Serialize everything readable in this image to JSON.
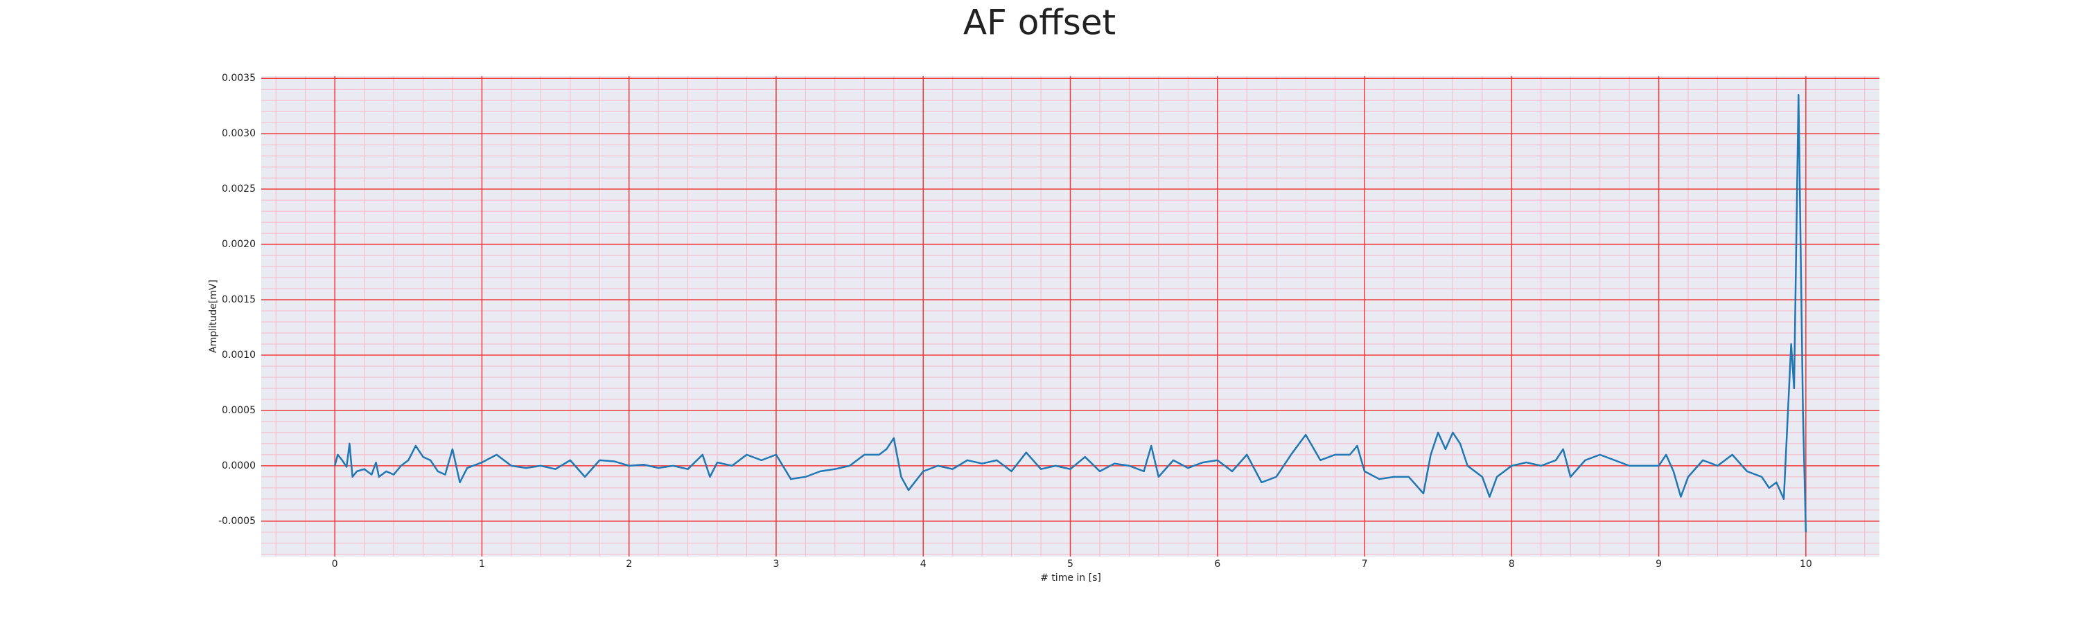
{
  "chart_data": {
    "type": "line",
    "title": "AF offset",
    "x_label": "# time in [s]",
    "y_label": "Amplitude[mV]",
    "color": "#1f77b4",
    "background": "#eaeaf2",
    "grid": true,
    "grid_color": "#f03a3a",
    "minor_grid": true,
    "minor_grid_color": "#f7b8c8",
    "minor_divisions": 5,
    "xlim": [
      -0.5,
      10.5
    ],
    "xticks": [
      0,
      1,
      2,
      3,
      4,
      5,
      6,
      7,
      8,
      9,
      10
    ],
    "ylim": [
      -0.00082,
      0.00352
    ],
    "yticks": [
      {
        "value": -0.0005,
        "label": "-0.0005"
      },
      {
        "value": 0,
        "label": "0.0000"
      },
      0.0005,
      {
        "value": 0.001,
        "label": "0.0010"
      },
      0.0015,
      {
        "value": 0.002,
        "label": "0.0020"
      },
      0.0025,
      {
        "value": 0.003,
        "label": "0.0030"
      },
      0.0035
    ],
    "x": [
      0,
      0.02,
      0.05,
      0.08,
      0.1,
      0.12,
      0.15,
      0.2,
      0.25,
      0.28,
      0.3,
      0.35,
      0.4,
      0.45,
      0.5,
      0.55,
      0.6,
      0.65,
      0.7,
      0.75,
      0.8,
      0.85,
      0.9,
      1.0,
      1.1,
      1.2,
      1.3,
      1.4,
      1.5,
      1.6,
      1.7,
      1.8,
      1.9,
      2.0,
      2.1,
      2.2,
      2.3,
      2.4,
      2.5,
      2.55,
      2.6,
      2.7,
      2.8,
      2.9,
      3.0,
      3.1,
      3.2,
      3.3,
      3.4,
      3.5,
      3.6,
      3.7,
      3.75,
      3.8,
      3.85,
      3.9,
      4.0,
      4.1,
      4.2,
      4.3,
      4.4,
      4.5,
      4.6,
      4.7,
      4.8,
      4.9,
      5.0,
      5.1,
      5.2,
      5.3,
      5.4,
      5.5,
      5.55,
      5.6,
      5.7,
      5.8,
      5.9,
      6.0,
      6.1,
      6.2,
      6.3,
      6.4,
      6.5,
      6.6,
      6.7,
      6.8,
      6.9,
      6.95,
      7.0,
      7.1,
      7.2,
      7.3,
      7.4,
      7.45,
      7.5,
      7.55,
      7.6,
      7.65,
      7.7,
      7.8,
      7.85,
      7.9,
      8.0,
      8.1,
      8.2,
      8.3,
      8.35,
      8.4,
      8.5,
      8.6,
      8.7,
      8.8,
      8.9,
      9.0,
      9.05,
      9.1,
      9.15,
      9.2,
      9.3,
      9.4,
      9.5,
      9.6,
      9.7,
      9.75,
      9.8,
      9.85,
      9.9,
      9.92,
      9.95,
      9.98,
      10.0
    ],
    "values": [
      0,
      0.0001,
      5e-05,
      -1e-05,
      0.0002,
      -0.0001,
      -5e-05,
      -3e-05,
      -8e-05,
      3e-05,
      -0.0001,
      -5e-05,
      -8e-05,
      0,
      5e-05,
      0.00018,
      8e-05,
      5e-05,
      -5e-05,
      -8e-05,
      0.00015,
      -0.00015,
      -2e-05,
      3e-05,
      0.0001,
      0,
      -2e-05,
      0,
      -3e-05,
      5e-05,
      -0.0001,
      5e-05,
      4e-05,
      0,
      1e-05,
      -2e-05,
      0,
      -3e-05,
      0.0001,
      -0.0001,
      3e-05,
      0,
      0.0001,
      5e-05,
      0.0001,
      -0.00012,
      -0.0001,
      -5e-05,
      -3e-05,
      0,
      0.0001,
      0.0001,
      0.00015,
      0.00025,
      -0.0001,
      -0.00022,
      -5e-05,
      0,
      -3e-05,
      5e-05,
      2e-05,
      5e-05,
      -5e-05,
      0.00012,
      -3e-05,
      0,
      -3e-05,
      8e-05,
      -5e-05,
      2e-05,
      0,
      -5e-05,
      0.00018,
      -0.0001,
      5e-05,
      -2e-05,
      3e-05,
      5e-05,
      -5e-05,
      0.0001,
      -0.00015,
      -0.0001,
      0.0001,
      0.00028,
      5e-05,
      0.0001,
      0.0001,
      0.00018,
      -5e-05,
      -0.00012,
      -0.0001,
      -0.0001,
      -0.00025,
      0.0001,
      0.0003,
      0.00015,
      0.0003,
      0.0002,
      0,
      -0.0001,
      -0.00028,
      -0.0001,
      0,
      3e-05,
      0,
      5e-05,
      0.00015,
      -0.0001,
      5e-05,
      0.0001,
      5e-05,
      0,
      0,
      0,
      0.0001,
      -5e-05,
      -0.00028,
      -0.0001,
      5e-05,
      0,
      0.0001,
      -5e-05,
      -0.0001,
      -0.0002,
      -0.00015,
      -0.0003,
      0.0011,
      0.0007,
      0.00335,
      0.0005,
      -0.0006
    ]
  }
}
